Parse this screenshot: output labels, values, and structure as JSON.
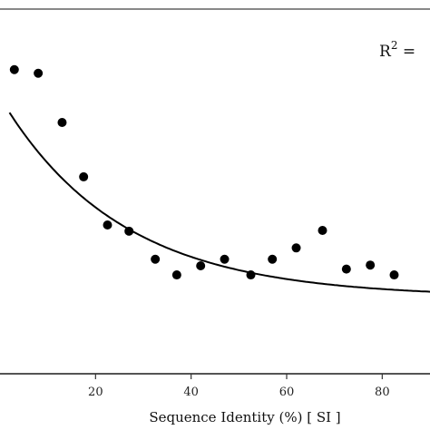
{
  "chart_data": {
    "type": "scatter",
    "xlabel": "Sequence Identity (%) [ SI ]",
    "ylabel": "",
    "xlim": [
      0,
      90
    ],
    "ylim": [
      0,
      10
    ],
    "x_ticks": [
      20,
      40,
      60,
      80
    ],
    "annotation": {
      "base": "R",
      "sup": "2",
      "rest": " ="
    },
    "series": [
      {
        "points": [
          [
            3,
            8.34
          ],
          [
            8,
            8.24
          ],
          [
            13,
            6.89
          ],
          [
            17.5,
            5.4
          ],
          [
            22.5,
            4.08
          ],
          [
            27,
            3.91
          ],
          [
            32.5,
            3.14
          ],
          [
            37,
            2.71
          ],
          [
            42,
            2.96
          ],
          [
            47,
            3.14
          ],
          [
            52.5,
            2.71
          ],
          [
            57,
            3.14
          ],
          [
            62,
            3.45
          ],
          [
            67.5,
            3.93
          ],
          [
            72.5,
            2.87
          ],
          [
            77.5,
            2.98
          ],
          [
            82.5,
            2.71
          ]
        ]
      }
    ],
    "fit": {
      "type": "exponential",
      "a": 2.1,
      "b": 5.48,
      "k": 0.04
    },
    "grid": false,
    "legend": "none"
  }
}
